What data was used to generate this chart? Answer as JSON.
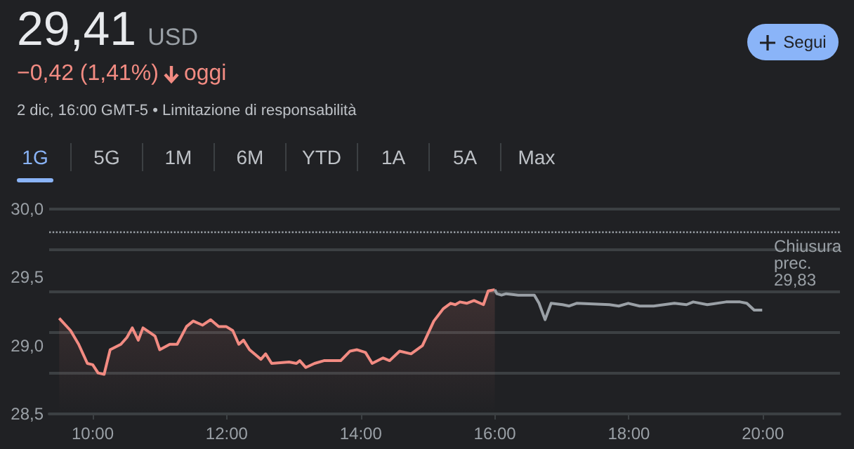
{
  "chart_data": {
    "type": "line",
    "title": "29,41",
    "annotations": [
      "USD",
      "−0,42 (1,41%)",
      "oggi",
      "2 dic, 16:00 GMT-5 • Limitazione di responsabilità",
      "Segui",
      "1G",
      "5G",
      "1M",
      "6M",
      "YTD",
      "1A",
      "5A",
      "Max"
    ],
    "series": [
      {
        "type": "area",
        "color": "#f28b82",
        "x": [
          9.5,
          9.67,
          9.79,
          9.92,
          10.0,
          10.08,
          10.17,
          10.26,
          10.42,
          10.51,
          10.59,
          10.68,
          10.75,
          10.87,
          10.93,
          11.0,
          11.15,
          11.26,
          11.4,
          11.5,
          11.64,
          11.76,
          11.88,
          11.99,
          12.09,
          12.18,
          12.25,
          12.34,
          12.51,
          12.58,
          12.67,
          12.93,
          13.04,
          13.09,
          13.18,
          13.31,
          13.45,
          13.59,
          13.7,
          13.84,
          13.94,
          14.07,
          14.17,
          14.33,
          14.43,
          14.58,
          14.75,
          14.92,
          15.09,
          15.23,
          15.34,
          15.41,
          15.48,
          15.58,
          15.69,
          15.83,
          15.9,
          16.0
        ],
        "values": [
          29.2,
          29.11,
          29.01,
          28.87,
          28.86,
          28.8,
          28.79,
          28.97,
          29.01,
          29.06,
          29.13,
          29.04,
          29.13,
          29.09,
          29.07,
          28.97,
          29.01,
          29.01,
          29.14,
          29.18,
          29.15,
          29.19,
          29.14,
          29.14,
          29.11,
          29.01,
          29.04,
          28.97,
          28.9,
          28.94,
          28.87,
          28.88,
          28.87,
          28.89,
          28.84,
          28.87,
          28.89,
          28.89,
          28.89,
          28.96,
          28.97,
          28.95,
          28.87,
          28.91,
          28.89,
          28.96,
          28.94,
          29.0,
          29.18,
          29.27,
          29.31,
          29.3,
          29.32,
          29.31,
          29.33,
          29.3,
          29.4,
          29.41
        ]
      },
      {
        "type": "line",
        "color": "#9aa0a6",
        "x": [
          16.0,
          16.03,
          16.1,
          16.17,
          16.35,
          16.59,
          16.66,
          16.75,
          16.84,
          17.01,
          17.11,
          17.22,
          17.71,
          17.85,
          17.99,
          18.16,
          18.37,
          18.68,
          18.86,
          18.96,
          19.17,
          19.45,
          19.66,
          19.76,
          19.87,
          19.99
        ],
        "values": [
          29.41,
          29.38,
          29.37,
          29.38,
          29.37,
          29.37,
          29.31,
          29.19,
          29.31,
          29.3,
          29.29,
          29.31,
          29.3,
          29.29,
          29.31,
          29.29,
          29.29,
          29.31,
          29.3,
          29.32,
          29.3,
          29.32,
          29.32,
          29.31,
          29.26,
          29.26
        ]
      }
    ],
    "xlim": [
      9.35,
      21.15
    ],
    "xticks": [
      {
        "value": 10,
        "label": "10:00"
      },
      {
        "value": 12,
        "label": "12:00"
      },
      {
        "value": 14,
        "label": "14:00"
      },
      {
        "value": 16,
        "label": "16:00"
      },
      {
        "value": 18,
        "label": "18:00"
      },
      {
        "value": 20,
        "label": "20:00"
      }
    ],
    "ylim": [
      28.5,
      30.0
    ],
    "yticks": [
      {
        "value": 28.5,
        "label": "28,5"
      },
      {
        "value": 29,
        "label": "29,0"
      },
      {
        "value": 29.5,
        "label": "29,5"
      },
      {
        "value": 30,
        "label": "30,0"
      }
    ],
    "ref_lines": [
      {
        "axis": "y",
        "value": 29.83,
        "label": "Chiusura prec. 29,83",
        "color": "#9aa0a6",
        "line_style": "dotted"
      }
    ],
    "grid": "y"
  }
}
